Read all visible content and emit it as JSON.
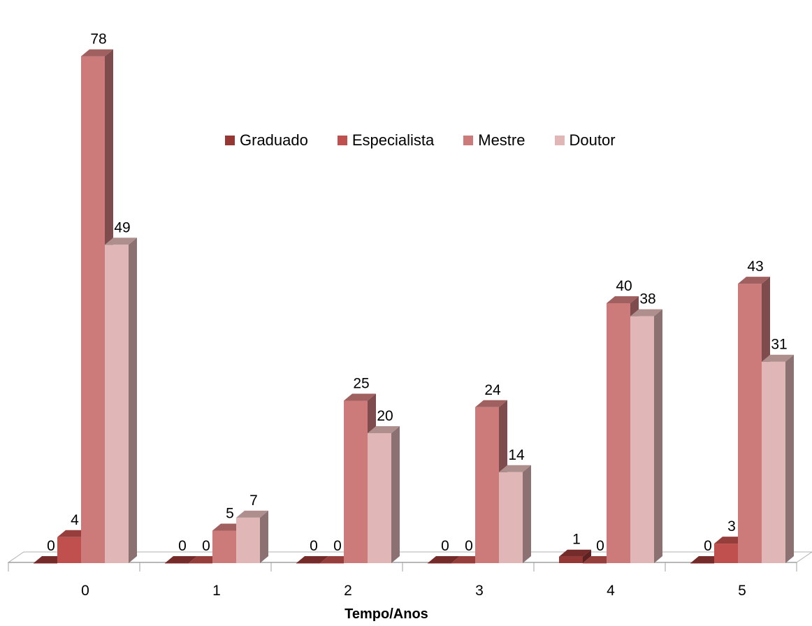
{
  "chart_data": {
    "type": "bar",
    "xlabel": "Tempo/Anos",
    "ylabel": "",
    "categories": [
      "0",
      "1",
      "2",
      "3",
      "4",
      "5"
    ],
    "series": [
      {
        "name": "Graduado",
        "values": [
          0,
          0,
          0,
          0,
          1,
          0
        ],
        "color": "#953735"
      },
      {
        "name": "Especialista",
        "values": [
          4,
          0,
          0,
          0,
          0,
          3
        ],
        "color": "#c0504d"
      },
      {
        "name": "Mestre",
        "values": [
          78,
          5,
          25,
          24,
          40,
          43
        ],
        "color": "#cc7b7a"
      },
      {
        "name": "Doutor",
        "values": [
          49,
          7,
          20,
          14,
          38,
          31
        ],
        "color": "#e0b7b6"
      }
    ],
    "ylim": [
      0,
      80
    ],
    "grid": false,
    "legend_position": "center-top",
    "style": "3d-clustered-column"
  }
}
